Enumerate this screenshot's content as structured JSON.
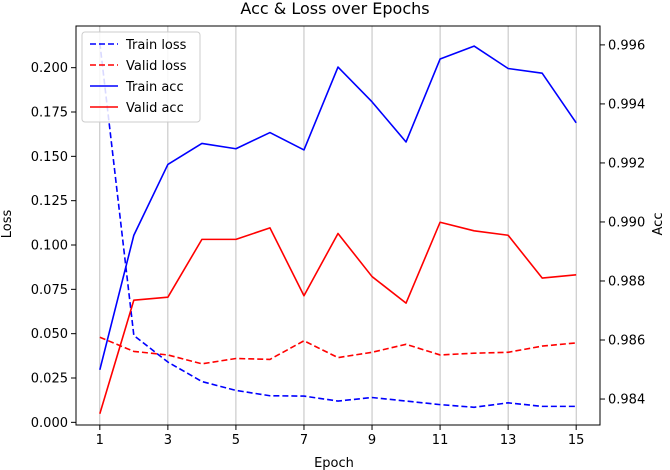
{
  "chart_data": {
    "type": "line",
    "title": "Acc & Loss over Epochs",
    "xlabel": "Epoch",
    "ylabel_left": "Loss",
    "ylabel_right": "Acc",
    "x": [
      1,
      2,
      3,
      4,
      5,
      6,
      7,
      8,
      9,
      10,
      11,
      12,
      13,
      14,
      15
    ],
    "xticks": [
      1,
      3,
      5,
      7,
      9,
      11,
      13,
      15
    ],
    "xlim": [
      0.3,
      15.7
    ],
    "ylim_left": [
      -0.0015,
      0.2235
    ],
    "yticks_left": [
      0.0,
      0.025,
      0.05,
      0.075,
      0.1,
      0.125,
      0.15,
      0.175,
      0.2
    ],
    "ylim_right": [
      0.98312,
      0.99664
    ],
    "yticks_right": [
      0.984,
      0.986,
      0.988,
      0.99,
      0.992,
      0.994,
      0.996
    ],
    "grid": "vertical",
    "legend_position": "upper-left",
    "series": [
      {
        "name": "Train loss",
        "axis": "left",
        "color": "#0000ff",
        "style": "dashed",
        "values": [
          0.214,
          0.049,
          0.034,
          0.023,
          0.018,
          0.015,
          0.0148,
          0.012,
          0.014,
          0.012,
          0.01,
          0.0085,
          0.011,
          0.009,
          0.009
        ]
      },
      {
        "name": "Valid loss",
        "axis": "left",
        "color": "#ff0000",
        "style": "dashed",
        "values": [
          0.048,
          0.04,
          0.038,
          0.033,
          0.036,
          0.0355,
          0.046,
          0.0365,
          0.0395,
          0.044,
          0.038,
          0.039,
          0.0395,
          0.043,
          0.0448
        ]
      },
      {
        "name": "Train acc",
        "axis": "right",
        "color": "#0000ff",
        "style": "solid",
        "values": [
          0.98499,
          0.98955,
          0.99195,
          0.99266,
          0.99248,
          0.99303,
          0.99244,
          0.99525,
          0.99407,
          0.99271,
          0.99552,
          0.99596,
          0.9952,
          0.99504,
          0.99336
        ]
      },
      {
        "name": "Valid acc",
        "axis": "right",
        "color": "#ff0000",
        "style": "solid",
        "values": [
          0.9835,
          0.98735,
          0.98745,
          0.98941,
          0.98941,
          0.9898,
          0.9875,
          0.98961,
          0.98815,
          0.98725,
          0.98999,
          0.9897,
          0.98955,
          0.9881,
          0.98821
        ]
      }
    ]
  }
}
